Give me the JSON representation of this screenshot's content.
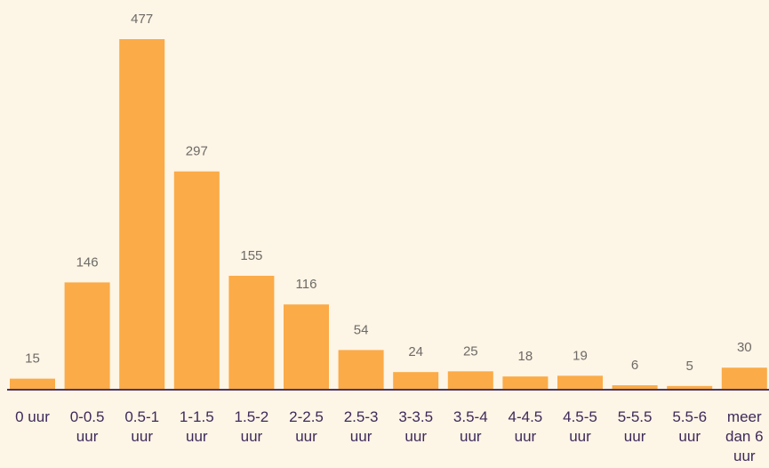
{
  "chart_data": {
    "type": "bar",
    "title": "",
    "xlabel": "",
    "ylabel": "",
    "ylim": [
      0,
      477
    ],
    "grid": false,
    "colors": {
      "bar": "#fbab47",
      "background": "#fdf5e6",
      "axis": "#4b3768",
      "tick_text": "#3f2a5a",
      "value_text": "#6d6a66"
    },
    "categories": [
      "0 uur",
      "0-0.5 uur",
      "0.5-1 uur",
      "1-1.5 uur",
      "1.5-2 uur",
      "2-2.5 uur",
      "2.5-3 uur",
      "3-3.5 uur",
      "3.5-4 uur",
      "4-4.5 uur",
      "4.5-5 uur",
      "5-5.5 uur",
      "5.5-6 uur",
      "meer dan 6 uur"
    ],
    "values": [
      15,
      146,
      477,
      297,
      155,
      116,
      54,
      24,
      25,
      18,
      19,
      6,
      5,
      30
    ]
  }
}
